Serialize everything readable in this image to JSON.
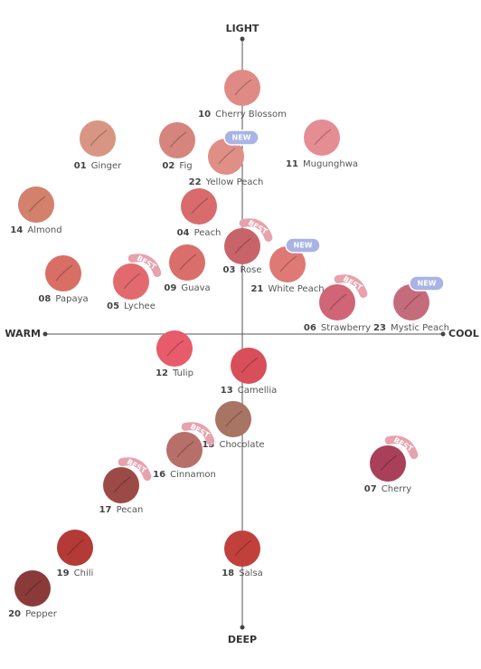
{
  "axes": {
    "top": "LIGHT",
    "bottom": "DEEP",
    "left": "WARM",
    "right": "COOL"
  },
  "nodes": [
    {
      "number": "10",
      "name": "Cherry Blossom",
      "color": "#e08a86"
    },
    {
      "number": "01",
      "name": "Ginger",
      "color": "#d99583"
    },
    {
      "number": "02",
      "name": "Fig",
      "color": "#d6847e"
    },
    {
      "number": "22",
      "name": "Yellow Peach",
      "color": "#df8f86",
      "badge": "NEW"
    },
    {
      "number": "11",
      "name": "Mugunghwa",
      "color": "#e48d93"
    },
    {
      "number": "14",
      "name": "Almond",
      "color": "#d3806c"
    },
    {
      "number": "04",
      "name": "Peach",
      "color": "#d96b6d"
    },
    {
      "number": "03",
      "name": "Rose",
      "color": "#c9636a",
      "badge": "BEST"
    },
    {
      "number": "21",
      "name": "White Peach",
      "color": "#de7976",
      "badge": "NEW"
    },
    {
      "number": "08",
      "name": "Papaya",
      "color": "#d86e64"
    },
    {
      "number": "05",
      "name": "Lychee",
      "color": "#e26a6e",
      "badge": "BEST"
    },
    {
      "number": "09",
      "name": "Guava",
      "color": "#da6e6a"
    },
    {
      "number": "06",
      "name": "Strawberry",
      "color": "#cf6577",
      "badge": "BEST"
    },
    {
      "number": "23",
      "name": "Mystic Peach",
      "color": "#c46c7b",
      "badge": "NEW"
    },
    {
      "number": "12",
      "name": "Tulip",
      "color": "#e85b6a"
    },
    {
      "number": "13",
      "name": "Camellia",
      "color": "#d84f5a"
    },
    {
      "number": "15",
      "name": "Chocolate",
      "color": "#a87463"
    },
    {
      "number": "16",
      "name": "Cinnamon",
      "color": "#b76f6a",
      "badge": "BEST"
    },
    {
      "number": "07",
      "name": "Cherry",
      "color": "#a8405a",
      "badge": "BEST"
    },
    {
      "number": "17",
      "name": "Pecan",
      "color": "#9c4a47",
      "badge": "BEST"
    },
    {
      "number": "19",
      "name": "Chili",
      "color": "#b33a36"
    },
    {
      "number": "18",
      "name": "Salsa",
      "color": "#c2403c"
    },
    {
      "number": "20",
      "name": "Pepper",
      "color": "#8b3a3a"
    }
  ]
}
